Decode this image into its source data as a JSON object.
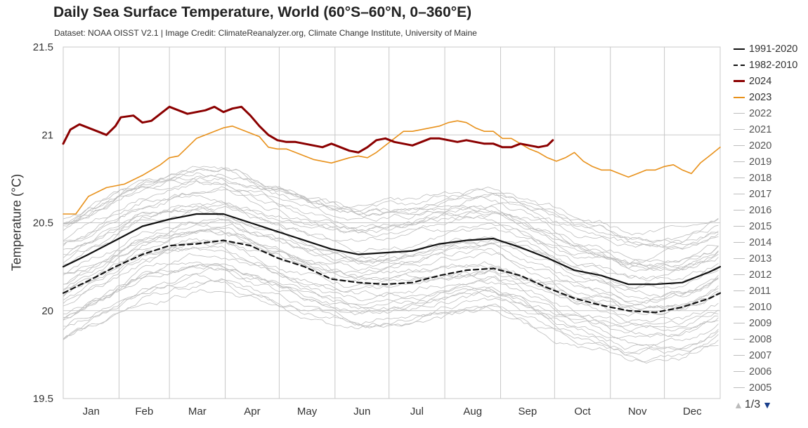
{
  "header": {
    "title": "Daily Sea Surface Temperature, World (60°S–60°N, 0–360°E)",
    "subtitle": "Dataset: NOAA OISST V2.1 | Image Credit: ClimateReanalyzer.org, Climate Change Institute, University of Maine"
  },
  "legend": {
    "items": [
      {
        "label": "1991-2020",
        "style": "solid-black"
      },
      {
        "label": "1982-2010",
        "style": "dashed-black"
      },
      {
        "label": "2024",
        "style": "thick-darkred"
      },
      {
        "label": "2023",
        "style": "orange"
      },
      {
        "label": "2022",
        "style": "gray"
      },
      {
        "label": "2021",
        "style": "gray"
      },
      {
        "label": "2020",
        "style": "gray"
      },
      {
        "label": "2019",
        "style": "gray"
      },
      {
        "label": "2018",
        "style": "gray"
      },
      {
        "label": "2017",
        "style": "gray"
      },
      {
        "label": "2016",
        "style": "gray"
      },
      {
        "label": "2015",
        "style": "gray"
      },
      {
        "label": "2014",
        "style": "gray"
      },
      {
        "label": "2013",
        "style": "gray"
      },
      {
        "label": "2012",
        "style": "gray"
      },
      {
        "label": "2011",
        "style": "gray"
      },
      {
        "label": "2010",
        "style": "gray"
      },
      {
        "label": "2009",
        "style": "gray"
      },
      {
        "label": "2008",
        "style": "gray"
      },
      {
        "label": "2007",
        "style": "gray"
      },
      {
        "label": "2006",
        "style": "gray"
      },
      {
        "label": "2005",
        "style": "gray"
      }
    ],
    "pager": "1/3",
    "pager_up_icon": "triangle-up-icon",
    "pager_down_icon": "triangle-down-icon"
  },
  "colors": {
    "y2024": "#8b0000",
    "y2023": "#e8911b",
    "climatology": "#111111",
    "past_years": "#bdbdbd",
    "grid": "#c8c8c8",
    "pager_active": "#1a3f8c"
  },
  "chart_data": {
    "type": "line",
    "title": "Daily Sea Surface Temperature, World (60°S–60°N, 0–360°E)",
    "xlabel": "",
    "ylabel": "Temperature (°C)",
    "ylim": [
      19.5,
      21.5
    ],
    "yticks": [
      19.5,
      20,
      20.5,
      21,
      21.5
    ],
    "ytick_labels": [
      "19.5",
      "20",
      "20.5",
      "21",
      "21.5"
    ],
    "xlim": [
      1,
      366
    ],
    "month_labels": [
      "Jan",
      "Feb",
      "Mar",
      "Apr",
      "May",
      "Jun",
      "Jul",
      "Aug",
      "Sep",
      "Oct",
      "Nov",
      "Dec"
    ],
    "grid": true,
    "legend_position": "right",
    "x_units": "day of year",
    "series": [
      {
        "name": "1991-2020",
        "x": [
          1,
          15,
          30,
          45,
          60,
          75,
          90,
          105,
          120,
          135,
          150,
          165,
          180,
          195,
          210,
          225,
          240,
          255,
          270,
          285,
          300,
          315,
          330,
          345,
          360,
          366
        ],
        "values": [
          20.25,
          20.32,
          20.4,
          20.48,
          20.52,
          20.55,
          20.55,
          20.5,
          20.45,
          20.4,
          20.35,
          20.32,
          20.33,
          20.34,
          20.38,
          20.4,
          20.41,
          20.36,
          20.3,
          20.23,
          20.2,
          20.15,
          20.15,
          20.16,
          20.22,
          20.25
        ]
      },
      {
        "name": "1982-2010",
        "x": [
          1,
          15,
          30,
          45,
          60,
          75,
          90,
          105,
          120,
          135,
          150,
          165,
          180,
          195,
          210,
          225,
          240,
          255,
          270,
          285,
          300,
          315,
          330,
          345,
          360,
          366
        ],
        "values": [
          20.1,
          20.17,
          20.25,
          20.32,
          20.37,
          20.38,
          20.4,
          20.37,
          20.3,
          20.25,
          20.18,
          20.16,
          20.15,
          20.16,
          20.2,
          20.23,
          20.24,
          20.2,
          20.13,
          20.07,
          20.03,
          20.0,
          19.99,
          20.02,
          20.07,
          20.1
        ]
      },
      {
        "name": "2024",
        "x": [
          1,
          5,
          10,
          15,
          20,
          25,
          30,
          33,
          40,
          45,
          50,
          55,
          60,
          65,
          70,
          75,
          80,
          85,
          90,
          95,
          100,
          105,
          110,
          115,
          120,
          125,
          130,
          135,
          140,
          145,
          150,
          155,
          160,
          165,
          170,
          175,
          180,
          185,
          190,
          195,
          200,
          205,
          210,
          215,
          220,
          225,
          230,
          235,
          240,
          245,
          250,
          255,
          260,
          265,
          270,
          273
        ],
        "values": [
          20.95,
          21.03,
          21.06,
          21.04,
          21.02,
          21.0,
          21.05,
          21.1,
          21.11,
          21.07,
          21.08,
          21.12,
          21.16,
          21.14,
          21.12,
          21.13,
          21.14,
          21.16,
          21.13,
          21.15,
          21.16,
          21.11,
          21.05,
          21.0,
          20.97,
          20.96,
          20.96,
          20.95,
          20.94,
          20.93,
          20.95,
          20.93,
          20.91,
          20.9,
          20.93,
          20.97,
          20.98,
          20.96,
          20.95,
          20.94,
          20.96,
          20.98,
          20.98,
          20.97,
          20.96,
          20.97,
          20.96,
          20.95,
          20.95,
          20.93,
          20.93,
          20.95,
          20.94,
          20.93,
          20.94,
          20.97
        ]
      },
      {
        "name": "2023",
        "x": [
          1,
          8,
          15,
          25,
          35,
          45,
          55,
          60,
          65,
          70,
          75,
          80,
          85,
          90,
          95,
          100,
          105,
          110,
          115,
          120,
          125,
          130,
          140,
          150,
          160,
          165,
          170,
          175,
          180,
          185,
          190,
          195,
          200,
          205,
          210,
          215,
          220,
          225,
          230,
          235,
          240,
          245,
          250,
          255,
          260,
          265,
          270,
          275,
          280,
          285,
          290,
          295,
          300,
          305,
          310,
          315,
          320,
          325,
          330,
          335,
          340,
          345,
          350,
          355,
          360,
          366
        ],
        "values": [
          20.55,
          20.55,
          20.65,
          20.7,
          20.72,
          20.77,
          20.83,
          20.87,
          20.88,
          20.93,
          20.98,
          21.0,
          21.02,
          21.04,
          21.05,
          21.03,
          21.01,
          20.99,
          20.93,
          20.92,
          20.92,
          20.9,
          20.86,
          20.84,
          20.87,
          20.88,
          20.87,
          20.9,
          20.94,
          20.98,
          21.02,
          21.02,
          21.03,
          21.04,
          21.05,
          21.07,
          21.08,
          21.07,
          21.04,
          21.02,
          21.02,
          20.98,
          20.98,
          20.95,
          20.92,
          20.9,
          20.87,
          20.85,
          20.87,
          20.9,
          20.85,
          20.82,
          20.8,
          20.8,
          20.78,
          20.76,
          20.78,
          20.8,
          20.8,
          20.82,
          20.83,
          20.8,
          20.78,
          20.84,
          20.88,
          20.93
        ]
      }
    ],
    "background_series_note_removed": true
  }
}
